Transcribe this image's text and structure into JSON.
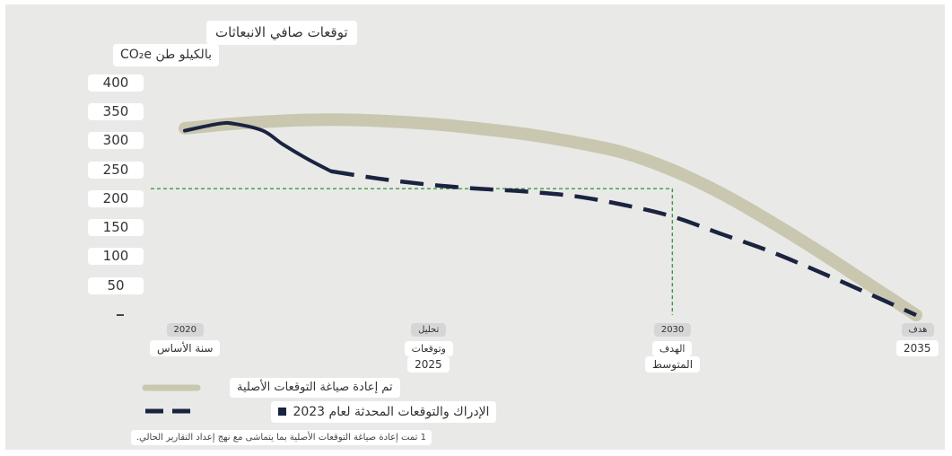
{
  "chart_data": {
    "type": "line",
    "title": "توقعات صافي الانبعاثات",
    "ylabel": "بالكيلو طن CO₂e",
    "ylim": [
      0,
      400
    ],
    "yticks": [
      50,
      100,
      150,
      200,
      250,
      300,
      350,
      400
    ],
    "xlim": [
      2020,
      2035
    ],
    "x_labels": [
      {
        "x": 2020,
        "top": "2020",
        "bottom": "سنة الأساس"
      },
      {
        "x": 2025,
        "top": "تحليل",
        "middle": "وتوقعات",
        "bottom": "2025"
      },
      {
        "x": 2030,
        "top": "2030",
        "middle": "الهدف",
        "bottom": "المتوسط"
      },
      {
        "x": 2035,
        "top": "هدف",
        "bottom": "2035"
      }
    ],
    "series": [
      {
        "name": "تم إعادة صياغة التوقعات الأصلية",
        "style": "band",
        "color": "#c9c7b0",
        "x": [
          2020,
          2021,
          2022,
          2023,
          2024,
          2025,
          2026,
          2027,
          2028,
          2029,
          2030,
          2031,
          2032,
          2033,
          2034,
          2035
        ],
        "y": [
          322,
          330,
          335,
          337,
          335,
          330,
          322,
          312,
          298,
          280,
          250,
          210,
          162,
          110,
          55,
          0
        ]
      },
      {
        "name": "الإدراك والتوقعات المحدثة لعام 2023",
        "style": "solid-then-dashed",
        "color": "#1a2340",
        "solid_until": 2023,
        "x": [
          2020,
          2020.7,
          2021,
          2021.6,
          2022,
          2022.5,
          2023,
          2024,
          2025,
          2026,
          2027,
          2028,
          2029,
          2030,
          2031,
          2032,
          2033,
          2034,
          2035
        ],
        "y": [
          318,
          330,
          330,
          318,
          295,
          270,
          248,
          235,
          225,
          218,
          213,
          205,
          190,
          170,
          140,
          110,
          75,
          38,
          0
        ]
      }
    ],
    "reference_lines": {
      "x": 2030,
      "y": 218,
      "color": "#3a9a44"
    },
    "legend_placement": "bottom",
    "footnote": "1 تمت إعادة صياغة التوقعات الأصلية بما يتماشى مع نهج إعداد التقارير الحالي."
  }
}
